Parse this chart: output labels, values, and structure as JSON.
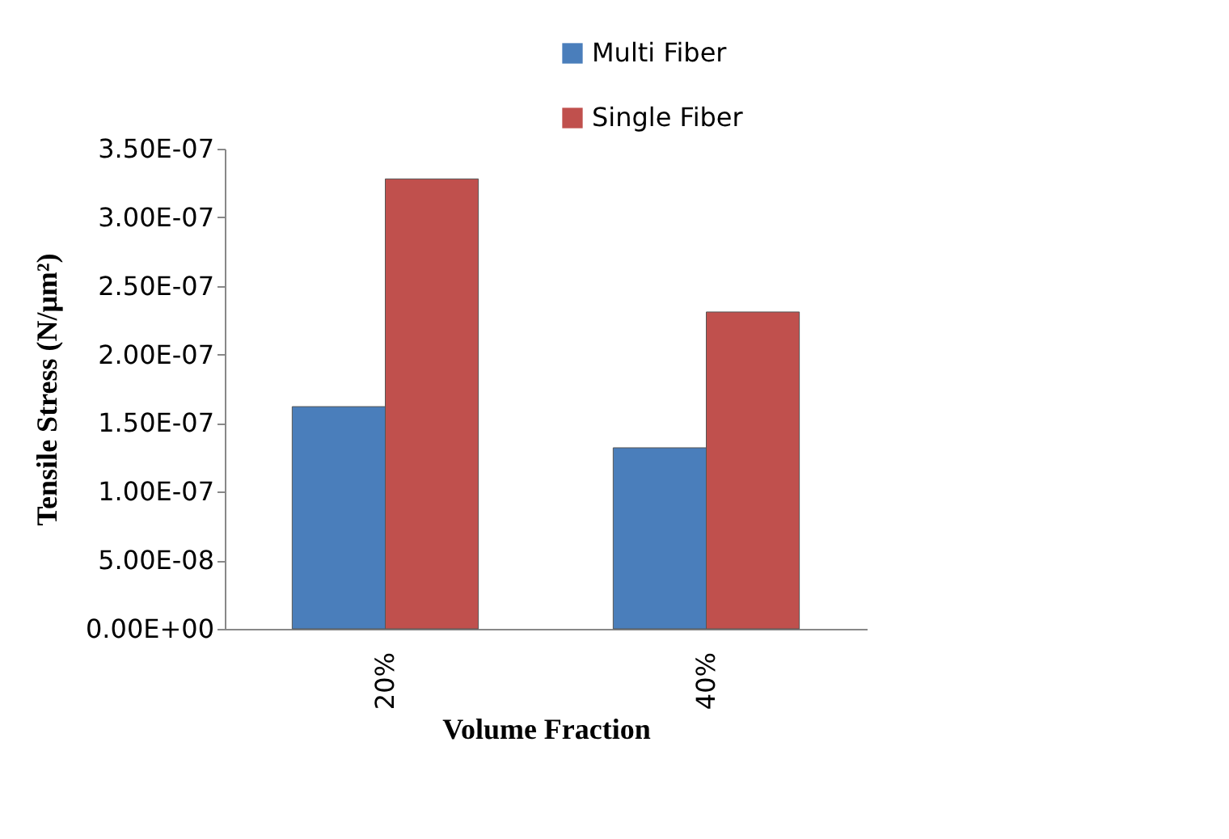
{
  "chart_data": {
    "type": "bar",
    "xlabel": "Volume Fraction",
    "ylabel": "Tensile Stress (N/μm²)",
    "categories": [
      "20%",
      "40%"
    ],
    "series": [
      {
        "name": "Multi Fiber",
        "color": "#4a7ebb",
        "values": [
          1.62e-07,
          1.32e-07
        ]
      },
      {
        "name": "Single Fiber",
        "color": "#c0504d",
        "values": [
          3.28e-07,
          2.31e-07
        ]
      }
    ],
    "ylim": [
      0,
      3.5e-07
    ],
    "yticks": [
      {
        "value": 0,
        "label": "0.00E+00"
      },
      {
        "value": 5e-08,
        "label": "5.00E-08"
      },
      {
        "value": 1e-07,
        "label": "1.00E-07"
      },
      {
        "value": 1.5e-07,
        "label": "1.50E-07"
      },
      {
        "value": 2e-07,
        "label": "2.00E-07"
      },
      {
        "value": 2.5e-07,
        "label": "2.50E-07"
      },
      {
        "value": 3e-07,
        "label": "3.00E-07"
      },
      {
        "value": 3.5e-07,
        "label": "3.50E-07"
      }
    ],
    "grid": false,
    "legend": "top right"
  }
}
